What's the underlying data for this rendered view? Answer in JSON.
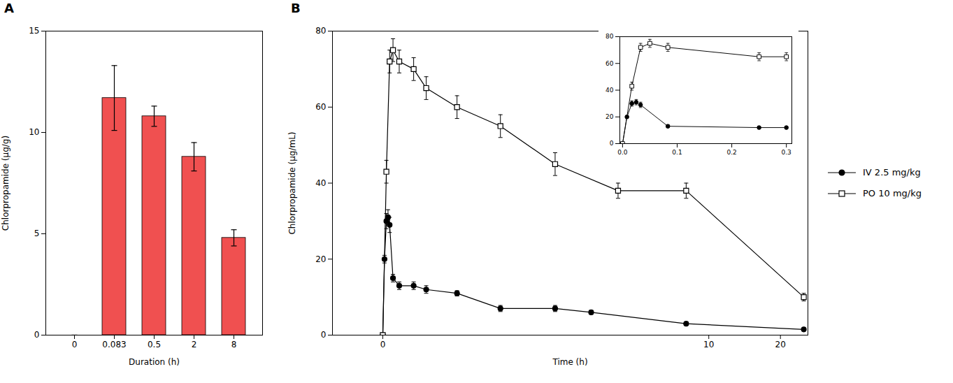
{
  "chart_data": [
    {
      "type": "bar",
      "title": "A",
      "categories": [
        "0",
        "0.083",
        "0.5",
        "2",
        "8"
      ],
      "values": [
        0,
        11.7,
        10.8,
        8.8,
        4.8
      ],
      "errors": [
        0,
        1.6,
        0.5,
        0.7,
        0.4
      ],
      "color": "#f05050",
      "xlabel": "Duration (h)",
      "ylabel": "Chlorpropamide (μg/g)",
      "ylim": [
        0,
        15
      ],
      "yticks": [
        0,
        5,
        10,
        15
      ],
      "grid": false
    },
    {
      "type": "line",
      "title": "B",
      "xlabel": "Time (h)",
      "ylabel": "Chlorpropamide (μg/mL)",
      "log": "x",
      "xlim": [
        -0.3,
        26
      ],
      "xticks": [
        0,
        10,
        20
      ],
      "ylim": [
        0,
        80
      ],
      "yticks": [
        0,
        20,
        40,
        60,
        80
      ],
      "grid": false,
      "legend": "right",
      "series": [
        {
          "name": "IV 2.5 mg/kg",
          "color": "black",
          "marker": "circle",
          "line_style": "solid",
          "x": [
            0,
            0.008,
            0.017,
            0.025,
            0.033,
            0.05,
            0.083,
            0.167,
            0.25,
            0.5,
            1.0,
            2.0,
            3.0,
            8.0,
            25.0
          ],
          "values": [
            0,
            20,
            30,
            31,
            29,
            15,
            13,
            13,
            12,
            11,
            7,
            7,
            6,
            3,
            1.5
          ],
          "errors": [
            0,
            1,
            2,
            2,
            2,
            1,
            1,
            1,
            1,
            0.7,
            0.8,
            0.8,
            0.5,
            0.4,
            0.3
          ]
        },
        {
          "name": "PO 10 mg/kg",
          "color": "black",
          "marker": "open_square",
          "line_style": "solid",
          "x": [
            0,
            0.017,
            0.033,
            0.05,
            0.083,
            0.167,
            0.25,
            0.5,
            1.0,
            2.0,
            4.0,
            8.0,
            25.0
          ],
          "values": [
            0,
            43,
            72,
            75,
            72,
            70,
            65,
            60,
            55,
            45,
            38,
            38,
            10
          ],
          "errors": [
            0,
            3,
            3,
            3,
            3,
            3,
            3,
            3,
            3,
            3,
            2,
            2,
            1
          ]
        }
      ]
    },
    {
      "type": "line",
      "xlim": [
        -0.005,
        0.31
      ],
      "xticks": [
        {
          "value": 0.0,
          "label": "0.0"
        },
        {
          "value": 0.1,
          "label": "0.1"
        },
        {
          "value": 0.2,
          "label": "0.2"
        },
        {
          "value": 0.3,
          "label": "0.3"
        }
      ],
      "ylim": [
        0,
        80
      ],
      "yticks": [
        0,
        20,
        40,
        60,
        80
      ],
      "grid": false,
      "series": [
        {
          "color": "black",
          "marker": "circle",
          "line_style": "solid",
          "x": [
            0,
            0.008,
            0.017,
            0.025,
            0.033,
            0.083,
            0.25,
            0.3
          ],
          "values": [
            0,
            20,
            30,
            31,
            29,
            13,
            12,
            12
          ],
          "errors": [
            0,
            1,
            2,
            2,
            2,
            1,
            1,
            1
          ]
        },
        {
          "color": "black",
          "marker": "open_square",
          "line_style": "solid",
          "x": [
            0,
            0.017,
            0.033,
            0.05,
            0.083,
            0.25,
            0.3
          ],
          "values": [
            0,
            43,
            72,
            75,
            72,
            65,
            65
          ],
          "errors": [
            0,
            3,
            3,
            3,
            3,
            3,
            3
          ]
        }
      ]
    }
  ]
}
